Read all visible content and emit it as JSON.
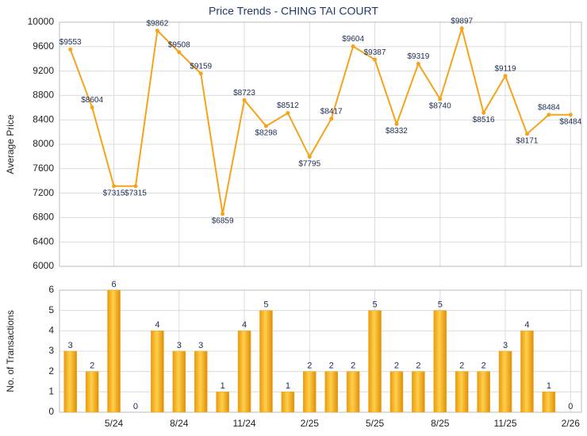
{
  "chart_data": [
    {
      "type": "line",
      "title": "Price Trends - CHING TAI COURT",
      "y_label": "Average Price",
      "color": "#f5a31a",
      "values": [
        9553,
        8604,
        7315,
        7315,
        9862,
        9508,
        9159,
        6859,
        8723,
        8298,
        8512,
        7795,
        8417,
        9604,
        9387,
        8332,
        9319,
        8740,
        9897,
        8516,
        9119,
        8171,
        8484,
        8484
      ],
      "value_labels": [
        "$9553",
        "$8604",
        "$7315",
        "$7315",
        "$9862",
        "$9508",
        "$9159",
        "$6859",
        "$8723",
        "$8298",
        "$8512",
        "$7795",
        "$8417",
        "$9604",
        "$9387",
        "$8332",
        "$9319",
        "$8740",
        "$9897",
        "$8516",
        "$9119",
        "$8171",
        "$8484",
        "$8484"
      ],
      "ylim": [
        6000,
        10000
      ],
      "yticks": [
        6000,
        6400,
        6800,
        7200,
        7600,
        8000,
        8400,
        8800,
        9200,
        9600,
        10000
      ],
      "grid": true
    },
    {
      "type": "bar",
      "y_label": "No. of Transactions",
      "color": "#f5a31a",
      "categories": [
        null,
        null,
        "5/24",
        null,
        null,
        "8/24",
        null,
        null,
        "11/24",
        null,
        null,
        "2/25",
        null,
        null,
        "5/25",
        null,
        null,
        "8/25",
        null,
        null,
        "11/25",
        null,
        null,
        "2/26"
      ],
      "values": [
        3,
        2,
        6,
        0,
        4,
        3,
        3,
        1,
        4,
        5,
        1,
        2,
        2,
        2,
        5,
        2,
        2,
        5,
        2,
        2,
        3,
        4,
        1,
        0
      ],
      "ylim": [
        0,
        6
      ],
      "yticks": [
        0,
        1,
        2,
        3,
        4,
        5,
        6
      ],
      "grid": true
    }
  ]
}
